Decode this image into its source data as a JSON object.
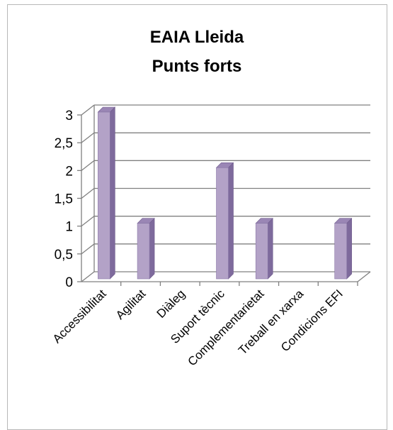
{
  "chart_data": {
    "type": "bar",
    "title": [
      "EAIA Lleida",
      "Punts forts"
    ],
    "xlabel": "",
    "ylabel": "",
    "categories": [
      "Accessibilitat",
      "Agilitat",
      "Diàleg",
      "Suport tècnic",
      "Complementarietat",
      "Treball en xarxa",
      "Condicions EFI"
    ],
    "values": [
      3,
      1,
      0,
      2,
      1,
      0,
      1
    ],
    "ylim": [
      0,
      3
    ],
    "yticks": [
      "0",
      "0,5",
      "1",
      "1,5",
      "2",
      "2,5",
      "3"
    ],
    "grid": true,
    "legend": "none",
    "three_d": true,
    "colors": {
      "bar_front": "#b3a2c7",
      "bar_side": "#7e6a9c",
      "bar_top": "#9a86b5",
      "grid": "#808080",
      "axis": "#808080"
    }
  }
}
